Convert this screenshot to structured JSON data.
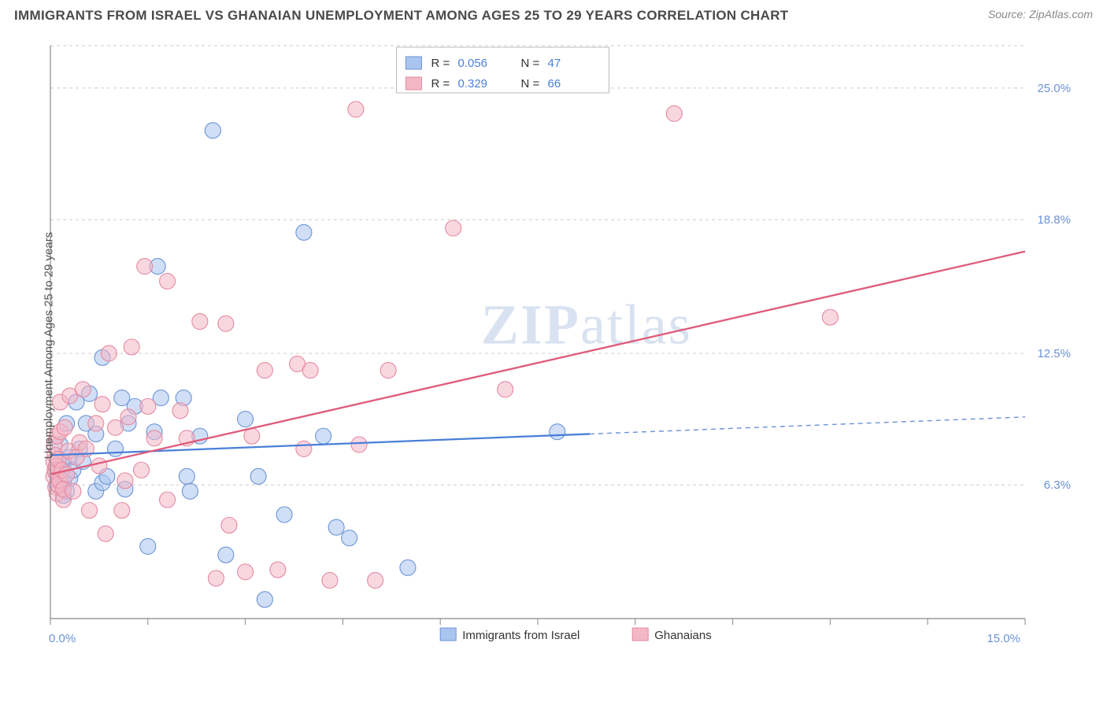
{
  "header": {
    "title": "IMMIGRANTS FROM ISRAEL VS GHANAIAN UNEMPLOYMENT AMONG AGES 25 TO 29 YEARS CORRELATION CHART",
    "source": "Source: ZipAtlas.com"
  },
  "ylabel": "Unemployment Among Ages 25 to 29 years",
  "watermark": {
    "part1": "ZIP",
    "part2": "atlas"
  },
  "chart": {
    "type": "scatter",
    "background_color": "#ffffff",
    "grid_color": "#cccccc",
    "axis_color": "#888888",
    "xlim": [
      0.0,
      15.0
    ],
    "ylim": [
      0.0,
      27.0
    ],
    "x_ticks_labeled": [
      {
        "v": 0.0,
        "label": "0.0%"
      },
      {
        "v": 15.0,
        "label": "15.0%"
      }
    ],
    "x_ticks_minor": [
      1.5,
      3.0,
      4.5,
      6.0,
      7.5,
      9.0,
      10.5,
      12.0,
      13.5
    ],
    "y_ticks": [
      {
        "v": 6.3,
        "label": "6.3%"
      },
      {
        "v": 12.5,
        "label": "12.5%"
      },
      {
        "v": 18.8,
        "label": "18.8%"
      },
      {
        "v": 25.0,
        "label": "25.0%"
      }
    ],
    "marker_radius": 10,
    "marker_opacity": 0.55,
    "series": [
      {
        "name": "Immigrants from Israel",
        "color_fill": "#a9c5ef",
        "color_stroke": "#6b93d6",
        "R": "0.056",
        "N": "47",
        "trend": {
          "solid": {
            "x1": 0.0,
            "y1": 7.7,
            "x2": 8.3,
            "y2": 8.7
          },
          "dash": {
            "x1": 8.3,
            "y1": 8.7,
            "x2": 15.0,
            "y2": 9.5
          }
        },
        "points": [
          [
            0.1,
            6.3
          ],
          [
            0.1,
            6.8
          ],
          [
            0.15,
            7.0
          ],
          [
            0.15,
            8.2
          ],
          [
            0.2,
            5.8
          ],
          [
            0.2,
            6.4
          ],
          [
            0.2,
            7.4
          ],
          [
            0.25,
            6.0
          ],
          [
            0.25,
            9.2
          ],
          [
            0.3,
            6.6
          ],
          [
            0.3,
            7.6
          ],
          [
            0.35,
            7.0
          ],
          [
            0.4,
            10.2
          ],
          [
            0.45,
            8.0
          ],
          [
            0.5,
            7.4
          ],
          [
            0.55,
            9.2
          ],
          [
            0.6,
            10.6
          ],
          [
            0.7,
            6.0
          ],
          [
            0.7,
            8.7
          ],
          [
            0.8,
            6.4
          ],
          [
            0.8,
            12.3
          ],
          [
            0.87,
            6.7
          ],
          [
            1.0,
            8.0
          ],
          [
            1.1,
            10.4
          ],
          [
            1.15,
            6.1
          ],
          [
            1.2,
            9.2
          ],
          [
            1.3,
            10.0
          ],
          [
            1.5,
            3.4
          ],
          [
            1.6,
            8.8
          ],
          [
            1.65,
            16.6
          ],
          [
            1.7,
            10.4
          ],
          [
            2.05,
            10.4
          ],
          [
            2.1,
            6.7
          ],
          [
            2.15,
            6.0
          ],
          [
            2.3,
            8.6
          ],
          [
            2.5,
            23.0
          ],
          [
            2.7,
            3.0
          ],
          [
            3.0,
            9.4
          ],
          [
            3.2,
            6.7
          ],
          [
            3.3,
            0.9
          ],
          [
            3.6,
            4.9
          ],
          [
            3.9,
            18.2
          ],
          [
            4.2,
            8.6
          ],
          [
            4.4,
            4.3
          ],
          [
            4.6,
            3.8
          ],
          [
            5.5,
            2.4
          ],
          [
            7.8,
            8.8
          ]
        ]
      },
      {
        "name": "Ghanaians",
        "color_fill": "#f4b7c6",
        "color_stroke": "#e58aa0",
        "R": "0.329",
        "N": "66",
        "trend": {
          "solid": {
            "x1": 0.0,
            "y1": 6.8,
            "x2": 15.0,
            "y2": 17.3
          }
        },
        "points": [
          [
            0.05,
            6.7
          ],
          [
            0.05,
            7.4
          ],
          [
            0.06,
            8.2
          ],
          [
            0.07,
            7.0
          ],
          [
            0.07,
            7.7
          ],
          [
            0.08,
            6.2
          ],
          [
            0.08,
            6.9
          ],
          [
            0.09,
            7.2
          ],
          [
            0.1,
            5.9
          ],
          [
            0.1,
            8.6
          ],
          [
            0.12,
            6.3
          ],
          [
            0.12,
            7.5
          ],
          [
            0.14,
            6.5
          ],
          [
            0.15,
            8.8
          ],
          [
            0.15,
            10.2
          ],
          [
            0.18,
            7.0
          ],
          [
            0.2,
            5.6
          ],
          [
            0.2,
            6.1
          ],
          [
            0.22,
            9.0
          ],
          [
            0.25,
            6.8
          ],
          [
            0.28,
            7.9
          ],
          [
            0.3,
            10.5
          ],
          [
            0.35,
            6.0
          ],
          [
            0.4,
            7.6
          ],
          [
            0.45,
            8.3
          ],
          [
            0.5,
            10.8
          ],
          [
            0.55,
            8.0
          ],
          [
            0.6,
            5.1
          ],
          [
            0.7,
            9.2
          ],
          [
            0.75,
            7.2
          ],
          [
            0.8,
            10.1
          ],
          [
            0.85,
            4.0
          ],
          [
            0.9,
            12.5
          ],
          [
            1.0,
            9.0
          ],
          [
            1.1,
            5.1
          ],
          [
            1.15,
            6.5
          ],
          [
            1.2,
            9.5
          ],
          [
            1.25,
            12.8
          ],
          [
            1.4,
            7.0
          ],
          [
            1.45,
            16.6
          ],
          [
            1.5,
            10.0
          ],
          [
            1.6,
            8.5
          ],
          [
            1.8,
            5.6
          ],
          [
            1.8,
            15.9
          ],
          [
            2.0,
            9.8
          ],
          [
            2.1,
            8.5
          ],
          [
            2.3,
            14.0
          ],
          [
            2.55,
            1.9
          ],
          [
            2.7,
            13.9
          ],
          [
            2.75,
            4.4
          ],
          [
            3.0,
            2.2
          ],
          [
            3.1,
            8.6
          ],
          [
            3.3,
            11.7
          ],
          [
            3.5,
            2.3
          ],
          [
            3.8,
            12.0
          ],
          [
            3.9,
            8.0
          ],
          [
            4.0,
            11.7
          ],
          [
            4.3,
            1.8
          ],
          [
            4.7,
            24.0
          ],
          [
            4.75,
            8.2
          ],
          [
            5.0,
            1.8
          ],
          [
            5.2,
            11.7
          ],
          [
            6.2,
            18.4
          ],
          [
            7.0,
            10.8
          ],
          [
            9.6,
            23.8
          ],
          [
            12.0,
            14.2
          ]
        ]
      }
    ],
    "top_legend": {
      "box": {
        "fill": "#ffffff",
        "stroke": "#bbbbbb"
      },
      "rows": [
        {
          "swatch_fill": "#a9c5ef",
          "swatch_stroke": "#6b93d6",
          "R_label": "R =",
          "R": "0.056",
          "N_label": "N =",
          "N": "47"
        },
        {
          "swatch_fill": "#f4b7c6",
          "swatch_stroke": "#e58aa0",
          "R_label": "R =",
          "R": "0.329",
          "N_label": "N =",
          "N": "66"
        }
      ]
    },
    "bottom_legend": [
      {
        "swatch_fill": "#a9c5ef",
        "swatch_stroke": "#6b93d6",
        "label": "Immigrants from Israel"
      },
      {
        "swatch_fill": "#f4b7c6",
        "swatch_stroke": "#e58aa0",
        "label": "Ghanaians"
      }
    ]
  }
}
